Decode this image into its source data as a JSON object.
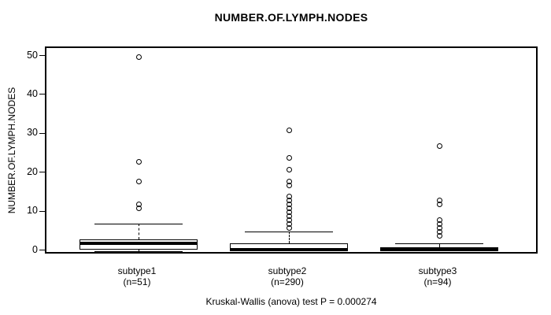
{
  "title": "NUMBER.OF.LYMPH.NODES",
  "y_axis": {
    "label": "NUMBER.OF.LYMPH.NODES",
    "ticks": [
      0,
      10,
      20,
      30,
      40,
      50
    ]
  },
  "annotation": "Kruskal-Wallis (anova) test P = 0.000274",
  "chart_data": {
    "type": "boxplot",
    "title": "NUMBER.OF.LYMPH.NODES",
    "ylabel": "NUMBER.OF.LYMPH.NODES",
    "xlabel": "",
    "ylim": [
      0,
      50
    ],
    "grid": false,
    "categories": [
      "subtype1",
      "subtype2",
      "subtype3"
    ],
    "groups": [
      {
        "label": "subtype1",
        "n_label": "(n=51)",
        "n": 51,
        "q1": 0.5,
        "median": 2,
        "q3": 3,
        "whisker_low": 0,
        "whisker_high": 7,
        "outliers": [
          11,
          12,
          18,
          23,
          50
        ]
      },
      {
        "label": "subtype2",
        "n_label": "(n=290)",
        "n": 290,
        "q1": 0,
        "median": 0.5,
        "q3": 2,
        "whisker_low": 0,
        "whisker_high": 5,
        "outliers": [
          6,
          7,
          8,
          9,
          10,
          11,
          12,
          13,
          14,
          17,
          18,
          21,
          24,
          31
        ]
      },
      {
        "label": "subtype3",
        "n_label": "(n=94)",
        "n": 94,
        "q1": 0,
        "median": 0.5,
        "q3": 1,
        "whisker_low": 0,
        "whisker_high": 2,
        "outliers": [
          4,
          5,
          6,
          7,
          8,
          12,
          13,
          27
        ]
      }
    ],
    "stat_note": "Kruskal-Wallis (anova) test P = 0.000274"
  }
}
